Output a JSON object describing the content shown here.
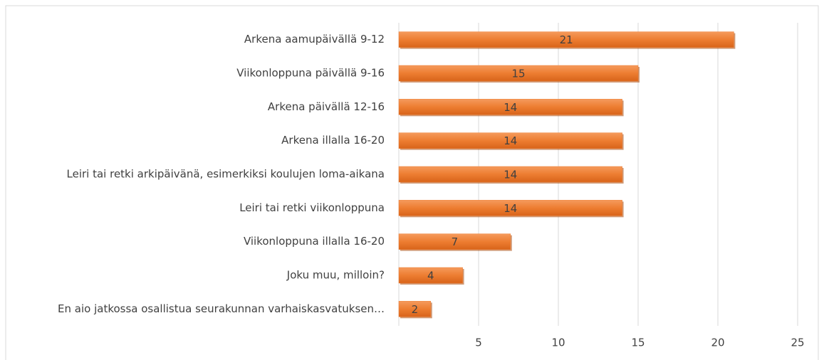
{
  "chart_data": {
    "type": "bar",
    "orientation": "horizontal",
    "categories": [
      "Arkena aamupäivällä 9-12",
      "Viikonloppuna päivällä 9-16",
      "Arkena päivällä 12-16",
      "Arkena illalla 16-20",
      "Leiri tai retki arkipäivänä, esimerkiksi koulujen loma-aikana",
      "Leiri tai retki viikonloppuna",
      "Viikonloppuna illalla 16-20",
      "Joku muu, milloin?",
      "En aio jatkossa osallistua seurakunnan varhaiskasvatuksen…"
    ],
    "values": [
      21,
      15,
      14,
      14,
      14,
      14,
      7,
      4,
      2
    ],
    "color": "#ed7d31",
    "xlim": [
      0,
      25
    ],
    "xticks": [
      5,
      10,
      15,
      20,
      25
    ],
    "grid": true
  }
}
